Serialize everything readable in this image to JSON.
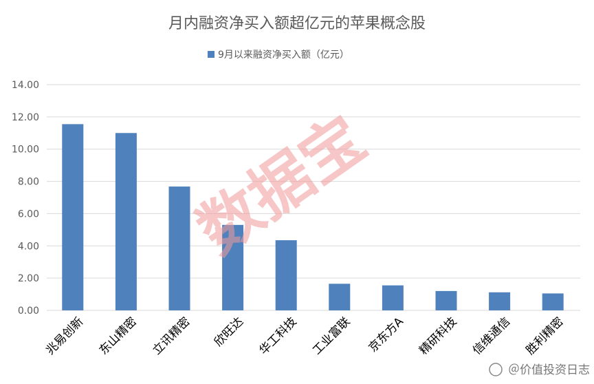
{
  "chart_data": {
    "type": "bar",
    "title": "月内融资净买入额超亿元的苹果概念股",
    "xlabel": "",
    "ylabel": "",
    "categories": [
      "兆易创新",
      "东山精密",
      "立讯精密",
      "欣旺达",
      "华工科技",
      "工业富联",
      "京东方A",
      "精研科技",
      "信维通信",
      "胜利精密"
    ],
    "series": [
      {
        "name": "9月以来融资净买入额（亿元）",
        "values": [
          11.55,
          11.0,
          7.68,
          5.3,
          4.35,
          1.65,
          1.55,
          1.2,
          1.12,
          1.05
        ]
      }
    ],
    "yticks": [
      "0.00",
      "2.00",
      "4.00",
      "6.00",
      "8.00",
      "10.00",
      "12.00",
      "14.00"
    ],
    "ylim": [
      0,
      14
    ],
    "grid": true,
    "legend_position": "top",
    "bar_color": "#4F81BD",
    "gridline_color": "#d9d9d9"
  },
  "watermark": "数据宝",
  "watermark_color": "#f29b9b",
  "source_tag": "＠价值投资日志"
}
